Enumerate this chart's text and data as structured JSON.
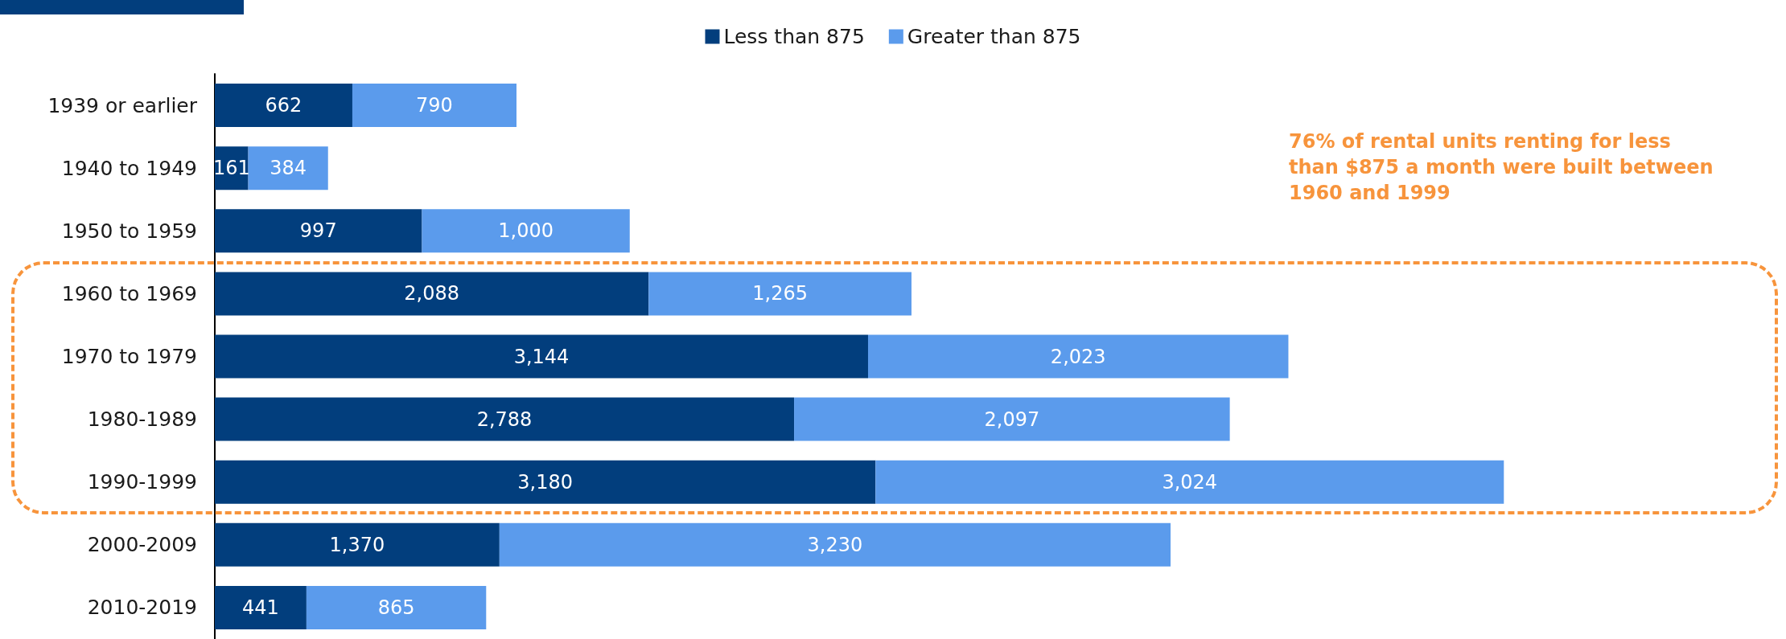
{
  "chart_data": {
    "type": "bar",
    "orientation": "horizontal",
    "stacked": true,
    "legend": "top",
    "tick_labels": "y",
    "categories": [
      "1939 or earlier",
      "1940 to 1949",
      "1950 to 1959",
      "1960 to 1969",
      "1970 to 1979",
      "1980-1989",
      "1990-1999",
      "2000-2009",
      "2010-2019"
    ],
    "series": [
      {
        "name": "Less than 875",
        "color": "#023e7d",
        "values": [
          662,
          161,
          997,
          2088,
          3144,
          2788,
          3180,
          1370,
          441
        ],
        "value_labels": [
          "662",
          "161",
          "997",
          "2,088",
          "3,144",
          "2,788",
          "3,180",
          "1,370",
          "441"
        ]
      },
      {
        "name": "Greater than 875",
        "color": "#5b9bec",
        "values": [
          790,
          384,
          1000,
          1265,
          2023,
          2097,
          3024,
          3230,
          865
        ],
        "value_labels": [
          "790",
          "384",
          "1,000",
          "1,265",
          "2,023",
          "2,097",
          "3,024",
          "3,230",
          "865"
        ]
      }
    ],
    "annotations": [
      "76% of rental units renting for less than $875 a month were built between 1960 and 1999"
    ]
  }
}
